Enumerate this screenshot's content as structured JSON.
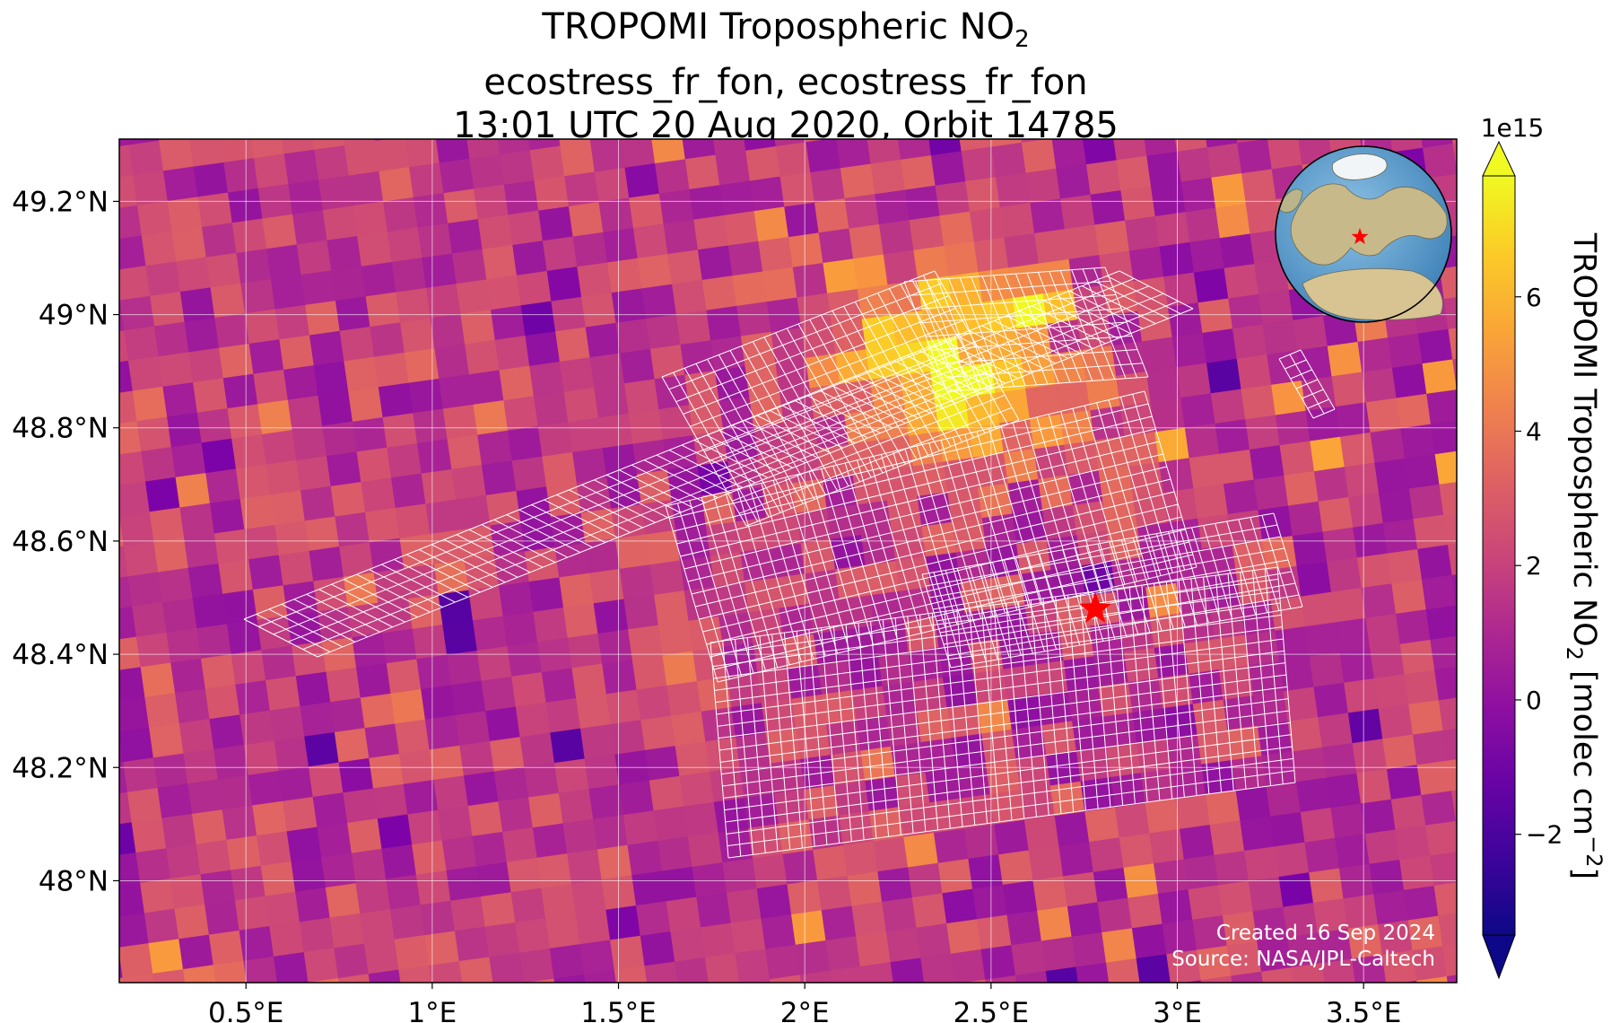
{
  "title": {
    "line1": "TROPOMI Tropospheric NO",
    "line1_sub": "2",
    "line2": "ecostress_fr_fon, ecostress_fr_fon",
    "line3": "13:01 UTC 20 Aug 2020, Orbit 14785"
  },
  "colorbar": {
    "label": "TROPOMI Tropospheric NO",
    "label_sub": "2",
    "label_units": " [molec cm",
    "label_sup": "−2",
    "label_end": "]",
    "multiplier": "1e15",
    "ticks": [
      -2,
      0,
      2,
      4,
      6
    ],
    "tick_labels": [
      "−2",
      "0",
      "2",
      "4",
      "6"
    ],
    "range": [
      -3.5,
      7.8
    ],
    "colormap": "plasma",
    "extend": "both"
  },
  "watermark": {
    "line1": "Created 16 Sep 2024",
    "line2": "Source: NASA/JPL-Caltech"
  },
  "chart_data": {
    "type": "heatmap",
    "title": "TROPOMI Tropospheric NO2 — ecostress_fr_fon, ecostress_fr_fon — 13:01 UTC 20 Aug 2020, Orbit 14785",
    "xlabel": "",
    "ylabel": "",
    "x_ticks": [
      0.5,
      1.0,
      1.5,
      2.0,
      2.5,
      3.0,
      3.5
    ],
    "x_tick_labels": [
      "0.5°E",
      "1°E",
      "1.5°E",
      "2°E",
      "2.5°E",
      "3°E",
      "3.5°E"
    ],
    "y_ticks": [
      48.0,
      48.2,
      48.4,
      48.6,
      48.8,
      49.0,
      49.2
    ],
    "y_tick_labels": [
      "48°N",
      "48.2°N",
      "48.4°N",
      "48.6°N",
      "48.8°N",
      "49°N",
      "49.2°N"
    ],
    "xlim": [
      0.16,
      3.75
    ],
    "ylim": [
      47.82,
      49.31
    ],
    "value_range": [
      -3.5,
      7.8
    ],
    "grid": true,
    "marker": {
      "type": "star",
      "color": "#ff0000",
      "lon": 2.78,
      "lat": 48.48
    },
    "hotspot": {
      "lon": 2.4,
      "lat": 48.92,
      "peak_value": 7
    },
    "inset": "orthographic globe with red star marking the site",
    "overlay": "white outlines of ECOSTRESS pixel swaths"
  }
}
